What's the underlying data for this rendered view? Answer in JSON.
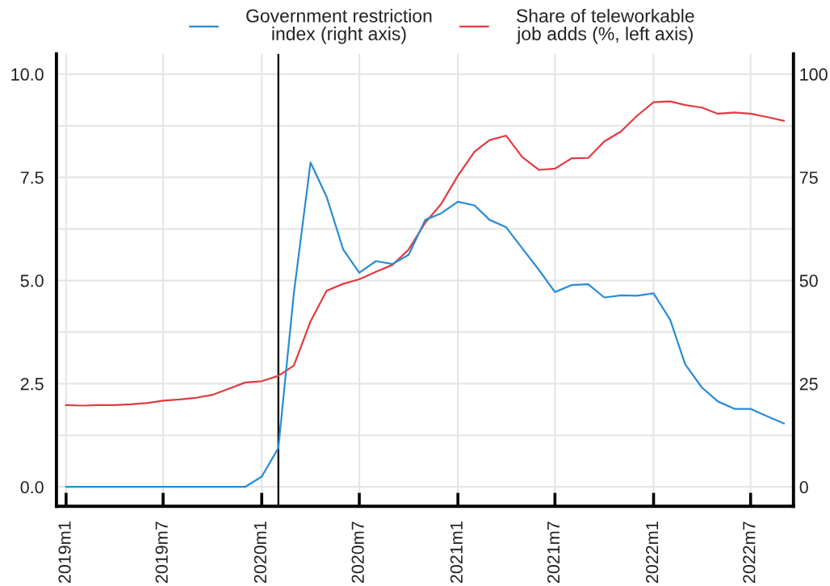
{
  "chart_data": {
    "type": "line",
    "x": [
      "2019-01",
      "2019-02",
      "2019-03",
      "2019-04",
      "2019-05",
      "2019-06",
      "2019-07",
      "2019-08",
      "2019-09",
      "2019-10",
      "2019-11",
      "2019-12",
      "2020-01",
      "2020-02",
      "2020-03",
      "2020-04",
      "2020-05",
      "2020-06",
      "2020-07",
      "2020-08",
      "2020-09",
      "2020-10",
      "2020-11",
      "2020-12",
      "2021-01",
      "2021-02",
      "2021-03",
      "2021-04",
      "2021-05",
      "2021-06",
      "2021-07",
      "2021-08",
      "2021-09",
      "2021-10",
      "2021-11",
      "2021-12",
      "2022-01",
      "2022-02",
      "2022-03",
      "2022-04",
      "2022-05",
      "2022-06",
      "2022-07",
      "2022-08",
      "2022-09"
    ],
    "series": [
      {
        "name": "Government restriction\nindex (right axis)",
        "color": "#2a8dd4",
        "axis": "y2",
        "values": [
          0,
          0,
          0,
          0,
          0,
          0,
          0,
          0,
          0,
          0,
          0,
          0,
          2.5,
          9.4,
          47,
          78.6,
          70.3,
          57.5,
          51.9,
          54.7,
          54.0,
          56.2,
          64.7,
          66.3,
          69.1,
          68.2,
          64.7,
          62.9,
          57.8,
          52.6,
          47.2,
          48.9,
          49.1,
          45.9,
          46.4,
          46.3,
          46.9,
          40.5,
          29.7,
          24.1,
          20.7,
          18.9,
          18.9,
          17.1,
          15.4
        ]
      },
      {
        "name": "Share of teleworkable\njob adds (%, left axis)",
        "color": "#e23b41",
        "values": [
          1.98,
          1.97,
          1.98,
          1.98,
          2.0,
          2.03,
          2.09,
          2.12,
          2.16,
          2.23,
          2.38,
          2.53,
          2.56,
          2.69,
          2.94,
          4.01,
          4.75,
          4.92,
          5.03,
          5.21,
          5.38,
          5.75,
          6.4,
          6.86,
          7.54,
          8.12,
          8.4,
          8.51,
          7.99,
          7.68,
          7.71,
          7.96,
          7.97,
          8.37,
          8.61,
          8.99,
          9.32,
          9.34,
          9.25,
          9.19,
          9.04,
          9.07,
          9.04,
          8.96,
          8.87
        ]
      }
    ],
    "xlim": [
      "2018-12-14",
      "2022-09-19"
    ],
    "xticks": [
      {
        "value": "2019-01",
        "label": "2019m1"
      },
      {
        "value": "2019-07",
        "label": "2019m7"
      },
      {
        "value": "2020-01",
        "label": "2020m1"
      },
      {
        "value": "2020-07",
        "label": "2020m7"
      },
      {
        "value": "2021-01",
        "label": "2021m1"
      },
      {
        "value": "2021-07",
        "label": "2021m7"
      },
      {
        "value": "2022-01",
        "label": "2022m1"
      },
      {
        "value": "2022-07",
        "label": "2022m7"
      }
    ],
    "ylim": [
      -0.47,
      10.49
    ],
    "yticks": [
      {
        "value": 0,
        "label": "0.0"
      },
      {
        "value": 1.25,
        "label": null
      },
      2.5,
      {
        "value": 3.75,
        "label": null
      },
      {
        "value": 5,
        "label": "5.0"
      },
      {
        "value": 6.25,
        "label": null
      },
      7.5,
      {
        "value": 8.75,
        "label": null
      },
      {
        "value": 10,
        "label": "10.0"
      }
    ],
    "y2lim": [
      -4.7,
      104.9
    ],
    "y2ticks": [
      0,
      25,
      50,
      75,
      100
    ],
    "ref_lines": [
      {
        "axis": "x",
        "value": "2020-02",
        "color": "#000000"
      }
    ],
    "grid": true,
    "legend": "top",
    "marker": "none",
    "line_style": "solid"
  }
}
